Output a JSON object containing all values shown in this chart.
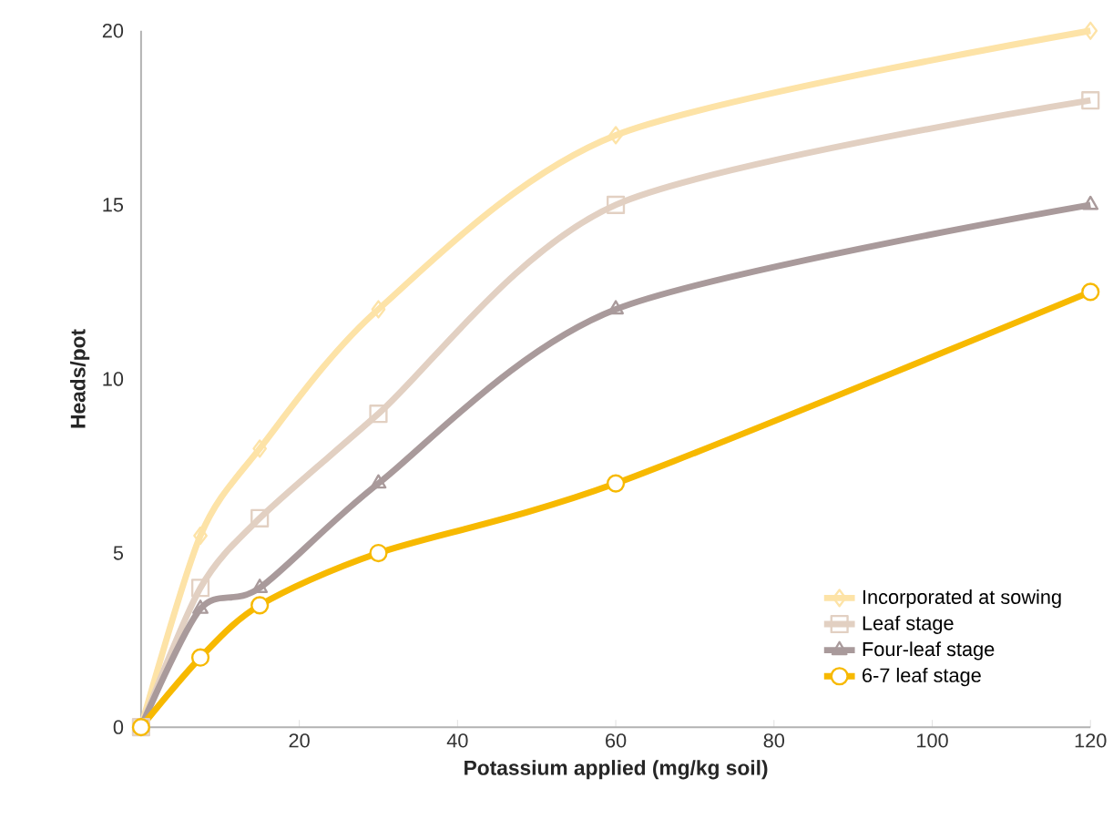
{
  "chart_data": {
    "type": "line",
    "xlabel": "Potassium applied (mg/kg soil)",
    "ylabel": "Heads/pot",
    "x": [
      0,
      7.5,
      15,
      30,
      60,
      120
    ],
    "series": [
      {
        "name": "Incorporated at sowing",
        "color": "#fde3a7",
        "marker": "diamond",
        "values": [
          0,
          5.5,
          8,
          12,
          17,
          20
        ]
      },
      {
        "name": "Leaf stage",
        "color": "#e2d0c2",
        "marker": "square",
        "values": [
          0,
          4,
          6,
          9,
          15,
          18
        ]
      },
      {
        "name": "Four-leaf stage",
        "color": "#a99a9b",
        "marker": "triangle",
        "values": [
          0,
          3.4,
          4,
          7,
          12,
          15
        ]
      },
      {
        "name": "6-7 leaf stage",
        "color": "#f7b900",
        "marker": "circle",
        "values": [
          0,
          2,
          3.5,
          5,
          7,
          12.5
        ]
      }
    ],
    "xlim": [
      0,
      120
    ],
    "ylim": [
      0,
      20
    ],
    "xticks": [
      {
        "value": 0,
        "label": null
      },
      20,
      40,
      60,
      80,
      100,
      120
    ],
    "yticks": [
      0,
      5,
      10,
      15,
      20
    ],
    "grid": false,
    "legend": "bottom right",
    "line_style": "solid"
  }
}
